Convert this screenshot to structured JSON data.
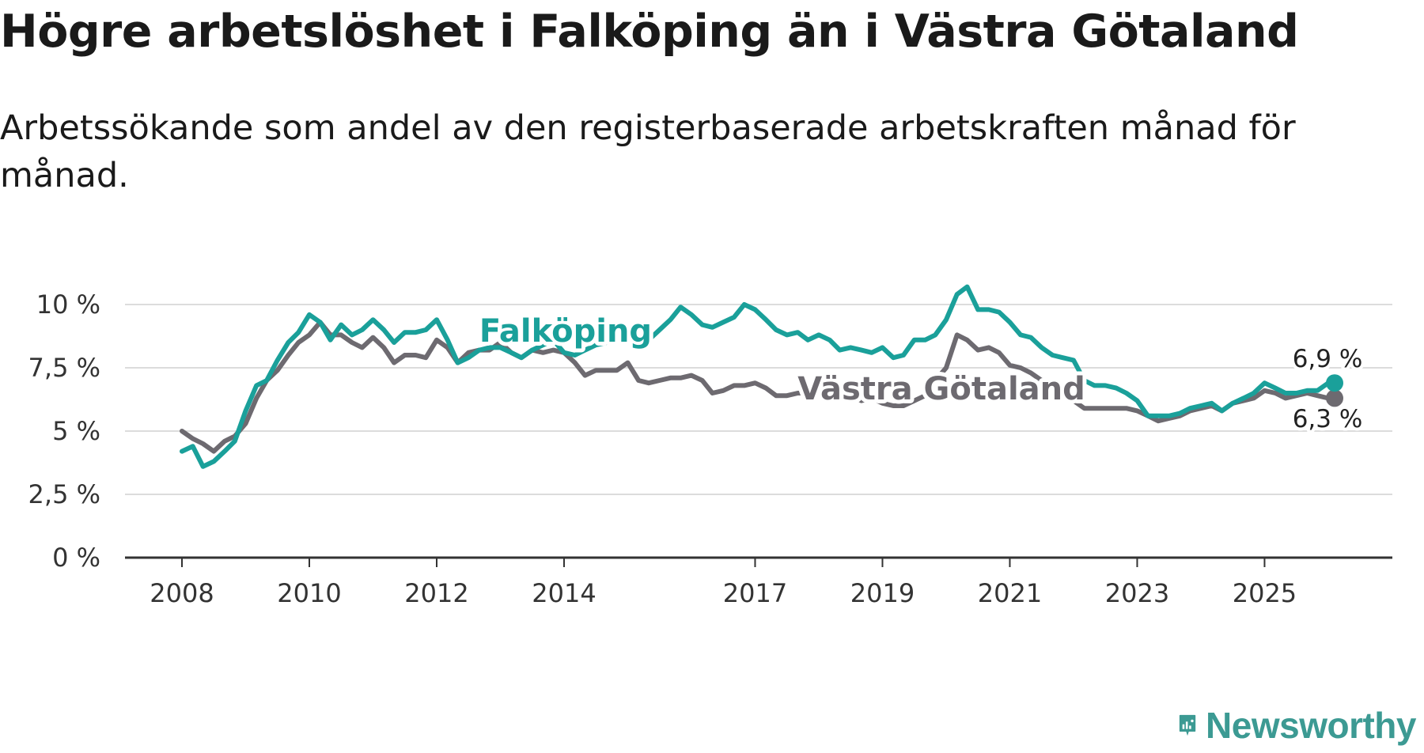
{
  "title": "Högre arbetslöshet i Falköping än i Västra Götaland",
  "subtitle": "Arbetssökande som andel av den registerbaserade arbetskraften månad för månad.",
  "brand": {
    "name": "Newsworthy",
    "icon": "newsworthy-logo-icon"
  },
  "colors": {
    "falkoping": "#1aa09a",
    "vg": "#6d6a70",
    "grid": "#dcdcdc",
    "axis": "#333333"
  },
  "chart_data": {
    "type": "line",
    "title": "Högre arbetslöshet i Falköping än i Västra Götaland",
    "xlabel": "",
    "ylabel": "",
    "ylim": [
      0,
      10
    ],
    "xlim": [
      2008,
      2026.8
    ],
    "y_ticks": [
      0,
      2.5,
      5,
      7.5,
      10
    ],
    "y_tick_labels": [
      "0 %",
      "2,5 %",
      "5 %",
      "7,5 %",
      "10 %"
    ],
    "x_ticks": [
      2008,
      2010,
      2012,
      2014,
      2017,
      2019,
      2021,
      2023,
      2025
    ],
    "x_tick_labels": [
      "2008",
      "2010",
      "2012",
      "2014",
      "2017",
      "2019",
      "2021",
      "2023",
      "2025"
    ],
    "grid": true,
    "series": [
      {
        "name": "Västra Götaland",
        "label": "Västra Götaland",
        "end_label": "6,3 %",
        "color": "#6d6a70",
        "x": [
          2008.0,
          2008.17,
          2008.33,
          2008.5,
          2008.67,
          2008.83,
          2009.0,
          2009.17,
          2009.33,
          2009.5,
          2009.67,
          2009.83,
          2010.0,
          2010.17,
          2010.33,
          2010.5,
          2010.67,
          2010.83,
          2011.0,
          2011.17,
          2011.33,
          2011.5,
          2011.67,
          2011.83,
          2012.0,
          2012.17,
          2012.33,
          2012.5,
          2012.67,
          2012.83,
          2013.0,
          2013.17,
          2013.33,
          2013.5,
          2013.67,
          2013.83,
          2014.0,
          2014.17,
          2014.33,
          2014.5,
          2014.67,
          2014.83,
          2015.0,
          2015.17,
          2015.33,
          2015.5,
          2015.67,
          2015.83,
          2016.0,
          2016.17,
          2016.33,
          2016.5,
          2016.67,
          2016.83,
          2017.0,
          2017.17,
          2017.33,
          2017.5,
          2017.67,
          2017.83,
          2018.0,
          2018.17,
          2018.33,
          2018.5,
          2018.67,
          2018.83,
          2019.0,
          2019.17,
          2019.33,
          2019.5,
          2019.67,
          2019.83,
          2020.0,
          2020.17,
          2020.33,
          2020.5,
          2020.67,
          2020.83,
          2021.0,
          2021.17,
          2021.33,
          2021.5,
          2021.67,
          2021.83,
          2022.0,
          2022.17,
          2022.33,
          2022.5,
          2022.67,
          2022.83,
          2023.0,
          2023.17,
          2023.33,
          2023.5,
          2023.67,
          2023.83,
          2024.0,
          2024.17,
          2024.33,
          2024.5,
          2024.67,
          2024.83,
          2025.0,
          2025.17,
          2025.33,
          2025.5,
          2025.67,
          2025.83,
          2026.0,
          2026.1
        ],
        "values": [
          5.0,
          4.7,
          4.5,
          4.2,
          4.6,
          4.8,
          5.3,
          6.3,
          7.0,
          7.4,
          8.0,
          8.5,
          8.8,
          9.3,
          8.8,
          8.8,
          8.5,
          8.3,
          8.7,
          8.3,
          7.7,
          8.0,
          8.0,
          7.9,
          8.6,
          8.3,
          7.7,
          8.1,
          8.2,
          8.2,
          8.5,
          8.1,
          7.9,
          8.2,
          8.1,
          8.2,
          8.1,
          7.7,
          7.2,
          7.4,
          7.4,
          7.4,
          7.7,
          7.0,
          6.9,
          7.0,
          7.1,
          7.1,
          7.2,
          7.0,
          6.5,
          6.6,
          6.8,
          6.8,
          6.9,
          6.7,
          6.4,
          6.4,
          6.5,
          6.5,
          6.6,
          6.5,
          6.3,
          6.4,
          6.2,
          6.3,
          6.1,
          6.0,
          6.0,
          6.2,
          6.4,
          7.0,
          7.5,
          8.8,
          8.6,
          8.2,
          8.3,
          8.1,
          7.6,
          7.5,
          7.3,
          7.0,
          6.8,
          6.5,
          6.2,
          5.9,
          5.9,
          5.9,
          5.9,
          5.9,
          5.8,
          5.6,
          5.4,
          5.5,
          5.6,
          5.8,
          5.9,
          6.0,
          5.8,
          6.1,
          6.2,
          6.3,
          6.6,
          6.5,
          6.3,
          6.4,
          6.5,
          6.4,
          6.3,
          6.3
        ]
      },
      {
        "name": "Falköping",
        "label": "Falköping",
        "end_label": "6,9 %",
        "color": "#1aa09a",
        "x": [
          2008.0,
          2008.17,
          2008.33,
          2008.5,
          2008.67,
          2008.83,
          2009.0,
          2009.17,
          2009.33,
          2009.5,
          2009.67,
          2009.83,
          2010.0,
          2010.17,
          2010.33,
          2010.5,
          2010.67,
          2010.83,
          2011.0,
          2011.17,
          2011.33,
          2011.5,
          2011.67,
          2011.83,
          2012.0,
          2012.17,
          2012.33,
          2012.5,
          2012.67,
          2012.83,
          2013.0,
          2013.17,
          2013.33,
          2013.5,
          2013.67,
          2013.83,
          2014.0,
          2014.17,
          2014.33,
          2014.5,
          2014.67,
          2014.83,
          2015.0,
          2015.17,
          2015.33,
          2015.5,
          2015.67,
          2015.83,
          2016.0,
          2016.17,
          2016.33,
          2016.5,
          2016.67,
          2016.83,
          2017.0,
          2017.17,
          2017.33,
          2017.5,
          2017.67,
          2017.83,
          2018.0,
          2018.17,
          2018.33,
          2018.5,
          2018.67,
          2018.83,
          2019.0,
          2019.17,
          2019.33,
          2019.5,
          2019.67,
          2019.83,
          2020.0,
          2020.17,
          2020.33,
          2020.5,
          2020.67,
          2020.83,
          2021.0,
          2021.17,
          2021.33,
          2021.5,
          2021.67,
          2021.83,
          2022.0,
          2022.17,
          2022.33,
          2022.5,
          2022.67,
          2022.83,
          2023.0,
          2023.17,
          2023.33,
          2023.5,
          2023.67,
          2023.83,
          2024.0,
          2024.17,
          2024.33,
          2024.5,
          2024.67,
          2024.83,
          2025.0,
          2025.17,
          2025.33,
          2025.5,
          2025.67,
          2025.83,
          2026.0,
          2026.1
        ],
        "values": [
          4.2,
          4.4,
          3.6,
          3.8,
          4.2,
          4.6,
          5.8,
          6.8,
          7.0,
          7.8,
          8.5,
          8.9,
          9.6,
          9.3,
          8.6,
          9.2,
          8.8,
          9.0,
          9.4,
          9.0,
          8.5,
          8.9,
          8.9,
          9.0,
          9.4,
          8.6,
          7.7,
          7.9,
          8.2,
          8.3,
          8.3,
          8.1,
          7.9,
          8.2,
          8.4,
          8.6,
          8.1,
          8.0,
          8.2,
          8.4,
          8.5,
          8.7,
          8.7,
          8.3,
          8.6,
          9.0,
          9.4,
          9.9,
          9.6,
          9.2,
          9.1,
          9.3,
          9.5,
          10.0,
          9.8,
          9.4,
          9.0,
          8.8,
          8.9,
          8.6,
          8.8,
          8.6,
          8.2,
          8.3,
          8.2,
          8.1,
          8.3,
          7.9,
          8.0,
          8.6,
          8.6,
          8.8,
          9.4,
          10.4,
          10.7,
          9.8,
          9.8,
          9.7,
          9.3,
          8.8,
          8.7,
          8.3,
          8.0,
          7.9,
          7.8,
          7.0,
          6.8,
          6.8,
          6.7,
          6.5,
          6.2,
          5.6,
          5.6,
          5.6,
          5.7,
          5.9,
          6.0,
          6.1,
          5.8,
          6.1,
          6.3,
          6.5,
          6.9,
          6.7,
          6.5,
          6.5,
          6.6,
          6.6,
          6.9,
          6.9
        ]
      }
    ],
    "legend": "inline"
  }
}
